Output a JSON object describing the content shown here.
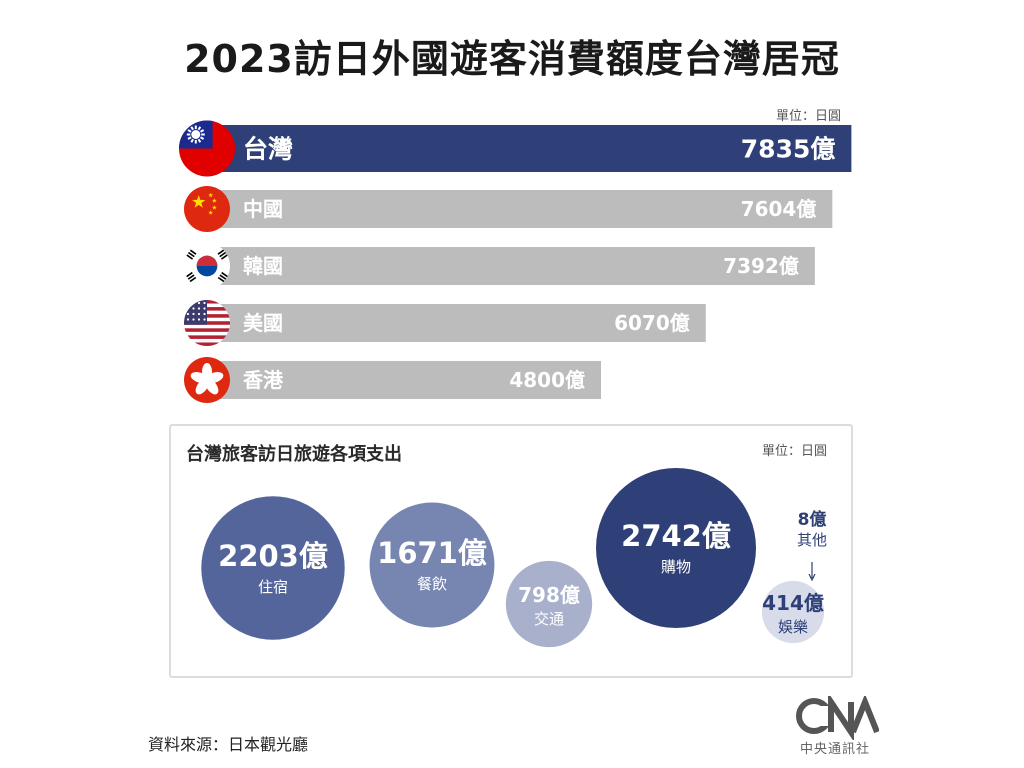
{
  "header": {
    "title": "2023訪日外國遊客消費額度台灣居冠",
    "unit_top": "單位：日圓"
  },
  "chart_data": [
    {
      "type": "bar",
      "orientation": "horizontal",
      "categories": [
        "台灣",
        "中國",
        "韓國",
        "美國",
        "香港"
      ],
      "values": [
        7835,
        7604,
        7392,
        6070,
        4800
      ],
      "value_labels": [
        "7835億",
        "7604億",
        "7392億",
        "6070億",
        "4800億"
      ],
      "value_unit": "億",
      "highlight_category": "台灣",
      "colors": {
        "highlight": "#2e4077",
        "default": "#bcbcbc"
      }
    },
    {
      "type": "bubble",
      "title": "台灣旅客訪日旅遊各項支出",
      "categories": [
        "住宿",
        "餐飲",
        "交通",
        "購物",
        "娛樂",
        "其他"
      ],
      "values": [
        2203,
        1671,
        798,
        2742,
        414,
        8
      ],
      "value_labels": [
        "2203億",
        "1671億",
        "798億",
        "2742億",
        "414億",
        "8億"
      ],
      "colors": [
        "#53659a",
        "#7686b1",
        "#a8b0cc",
        "#2e4077",
        "#d8dcea",
        "#ffffff"
      ]
    }
  ],
  "panel": {
    "unit": "單位：日圓"
  },
  "footer": {
    "source": "資料來源：日本觀光廳",
    "logo_text": "中央通訊社",
    "logo_letters": "CNA"
  }
}
